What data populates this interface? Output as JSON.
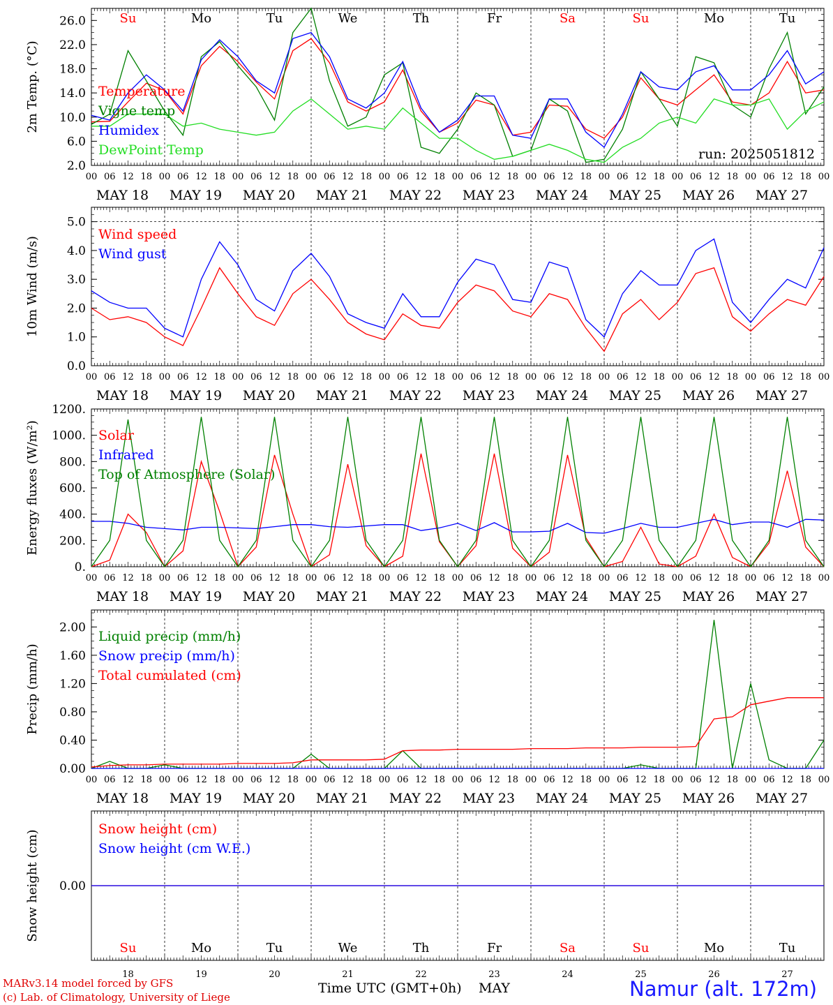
{
  "run_label": "run: 2025051812",
  "footer": {
    "credit1": "MARv3.14 model forced by GFS",
    "credit2": "(c) Lab. of Climatology, University of Liege",
    "xlabel": "Time UTC (GMT+0h)",
    "month": "MAY",
    "station": "Namur (alt. 172m)"
  },
  "day_names": [
    "Su",
    "Mo",
    "Tu",
    "We",
    "Th",
    "Fr",
    "Sa",
    "Su",
    "Mo",
    "Tu"
  ],
  "weekend_flags": [
    true,
    false,
    false,
    false,
    false,
    false,
    true,
    true,
    false,
    false
  ],
  "day_numbers": [
    "18",
    "19",
    "20",
    "21",
    "22",
    "23",
    "24",
    "25",
    "26",
    "27"
  ],
  "date_labels": [
    "MAY 18",
    "MAY 19",
    "MAY 20",
    "MAY 21",
    "MAY 22",
    "MAY 23",
    "MAY 24",
    "MAY 25",
    "MAY 26",
    "MAY 27"
  ],
  "hour_labels": [
    "00",
    "06",
    "12",
    "18"
  ],
  "colors": {
    "red": "#ff0000",
    "blue": "#0000ff",
    "green": "#008000",
    "lightgreen": "#22dd22",
    "grid": "#000000"
  },
  "chart_data": [
    {
      "type": "line",
      "ylabel": "2m Temp. (°C)",
      "ylim": [
        2,
        28
      ],
      "yticks": [
        2,
        6,
        10,
        14,
        18,
        22,
        26
      ],
      "tick_labels": [
        "2.0",
        "6.0",
        "10.0",
        "14.0",
        "18.0",
        "22.0",
        "26.0"
      ],
      "x_hours": [
        0,
        6,
        12,
        18,
        24,
        30,
        36,
        42,
        48,
        54,
        60,
        66,
        72,
        78,
        84,
        90,
        96,
        102,
        108,
        114,
        120,
        126,
        132,
        138,
        144,
        150,
        156,
        162,
        168,
        174,
        180,
        186,
        192,
        198,
        204,
        210,
        216,
        222,
        228,
        234,
        240
      ],
      "series": [
        {
          "name": "Temperature",
          "color": "#ff0000",
          "values": [
            9.2,
            9.3,
            12.5,
            15.6,
            14.4,
            10.5,
            18.5,
            21.7,
            19.2,
            15.8,
            13.0,
            21.0,
            23.0,
            19.0,
            12.5,
            11.0,
            12.5,
            17.8,
            11.0,
            7.5,
            9.0,
            12.8,
            12.0,
            7.0,
            7.5,
            12.0,
            11.8,
            8.0,
            6.5,
            10.0,
            16.5,
            13.0,
            12.0,
            14.5,
            17.0,
            12.5,
            12.0,
            14.0,
            19.2,
            14.0,
            14.5
          ]
        },
        {
          "name": "Vigne temp",
          "color": "#008000",
          "values": [
            8.8,
            10.5,
            21.0,
            16.0,
            11.0,
            7.0,
            20.0,
            22.5,
            18.5,
            15.0,
            9.5,
            24.0,
            28.0,
            16.0,
            8.5,
            10.0,
            17.0,
            19.0,
            5.0,
            4.0,
            8.0,
            14.0,
            12.0,
            3.5,
            4.5,
            13.0,
            11.0,
            2.5,
            3.0,
            8.0,
            17.5,
            13.0,
            8.5,
            20.0,
            19.0,
            12.0,
            10.0,
            18.0,
            24.0,
            10.5,
            15.0
          ]
        },
        {
          "name": "Humidex",
          "color": "#0000ff",
          "values": [
            10.3,
            9.5,
            14.0,
            17.0,
            14.5,
            11.0,
            19.5,
            22.8,
            20.0,
            16.0,
            14.0,
            23.0,
            24.0,
            20.0,
            13.0,
            11.5,
            14.0,
            19.2,
            11.5,
            7.5,
            9.5,
            13.5,
            13.5,
            7.0,
            6.5,
            13.0,
            13.0,
            7.5,
            5.0,
            10.5,
            17.5,
            15.0,
            14.5,
            17.5,
            18.5,
            14.5,
            14.5,
            17.0,
            21.0,
            15.5,
            17.5
          ]
        },
        {
          "name": "DewPoint Temp",
          "color": "#22dd22",
          "values": [
            8.5,
            8.5,
            10.5,
            10.5,
            10.5,
            8.5,
            9.0,
            8.0,
            7.5,
            7.0,
            7.5,
            11.0,
            13.0,
            10.5,
            8.0,
            8.5,
            8.0,
            11.5,
            9.0,
            6.5,
            6.5,
            4.5,
            3.0,
            3.5,
            4.5,
            5.5,
            4.5,
            3.0,
            2.5,
            5.0,
            6.5,
            9.0,
            10.0,
            9.0,
            13.0,
            12.0,
            12.0,
            13.0,
            8.0,
            11.0,
            12.5
          ]
        }
      ]
    },
    {
      "type": "line",
      "ylabel": "10m Wind (m/s)",
      "ylim": [
        0,
        5.5
      ],
      "yticks": [
        0,
        1,
        2,
        3,
        4,
        5
      ],
      "tick_labels": [
        "0.0",
        "1.0",
        "2.0",
        "3.0",
        "4.0",
        "5.0"
      ],
      "x_hours": [
        0,
        6,
        12,
        18,
        24,
        30,
        36,
        42,
        48,
        54,
        60,
        66,
        72,
        78,
        84,
        90,
        96,
        102,
        108,
        114,
        120,
        126,
        132,
        138,
        144,
        150,
        156,
        162,
        168,
        174,
        180,
        186,
        192,
        198,
        204,
        210,
        216,
        222,
        228,
        234,
        240
      ],
      "series": [
        {
          "name": "Wind speed",
          "color": "#ff0000",
          "values": [
            2.0,
            1.6,
            1.7,
            1.5,
            1.0,
            0.7,
            2.0,
            3.4,
            2.5,
            1.7,
            1.4,
            2.5,
            3.0,
            2.3,
            1.5,
            1.1,
            0.9,
            1.8,
            1.4,
            1.3,
            2.2,
            2.8,
            2.6,
            1.9,
            1.7,
            2.5,
            2.3,
            1.3,
            0.5,
            1.8,
            2.3,
            1.6,
            2.2,
            3.2,
            3.4,
            1.7,
            1.2,
            1.8,
            2.3,
            2.1,
            3.1
          ]
        },
        {
          "name": "Wind gust",
          "color": "#0000ff",
          "values": [
            2.6,
            2.2,
            2.0,
            2.0,
            1.3,
            1.0,
            3.0,
            4.3,
            3.5,
            2.3,
            1.9,
            3.3,
            3.9,
            3.1,
            1.8,
            1.5,
            1.3,
            2.5,
            1.7,
            1.7,
            2.9,
            3.7,
            3.5,
            2.3,
            2.2,
            3.6,
            3.4,
            1.6,
            1.0,
            2.5,
            3.3,
            2.8,
            2.8,
            4.0,
            4.4,
            2.2,
            1.5,
            2.3,
            3.0,
            2.7,
            4.1
          ]
        }
      ]
    },
    {
      "type": "line",
      "ylabel": "Energy fluxes (W/m²)",
      "ylim": [
        0,
        1200
      ],
      "yticks": [
        0,
        200,
        400,
        600,
        800,
        1000,
        1200
      ],
      "tick_labels": [
        "0.",
        "200.",
        "400.",
        "600.",
        "800.",
        "1000.",
        "1200."
      ],
      "x_hours": [
        0,
        6,
        12,
        18,
        24,
        30,
        36,
        42,
        48,
        54,
        60,
        66,
        72,
        78,
        84,
        90,
        96,
        102,
        108,
        114,
        120,
        126,
        132,
        138,
        144,
        150,
        156,
        162,
        168,
        174,
        180,
        186,
        192,
        198,
        204,
        210,
        216,
        222,
        228,
        234,
        240
      ],
      "series": [
        {
          "name": "Solar",
          "color": "#ff0000",
          "values": [
            0,
            50,
            400,
            260,
            0,
            120,
            800,
            420,
            0,
            150,
            850,
            400,
            0,
            90,
            780,
            160,
            0,
            80,
            860,
            190,
            0,
            160,
            860,
            140,
            0,
            110,
            850,
            220,
            0,
            40,
            300,
            20,
            0,
            80,
            400,
            70,
            0,
            180,
            730,
            150,
            0
          ]
        },
        {
          "name": "Infrared",
          "color": "#0000ff",
          "values": [
            345,
            345,
            330,
            300,
            290,
            280,
            300,
            300,
            295,
            290,
            305,
            320,
            320,
            305,
            300,
            310,
            320,
            320,
            275,
            295,
            330,
            275,
            335,
            265,
            265,
            270,
            330,
            260,
            255,
            290,
            330,
            300,
            300,
            330,
            360,
            320,
            340,
            340,
            300,
            360,
            355
          ]
        },
        {
          "name": "Top of Atmosphere (Solar)",
          "color": "#008000",
          "values": [
            0,
            200,
            1120,
            200,
            0,
            200,
            1140,
            200,
            0,
            200,
            1140,
            200,
            0,
            200,
            1140,
            200,
            0,
            200,
            1140,
            200,
            0,
            200,
            1140,
            200,
            0,
            200,
            1140,
            200,
            0,
            200,
            1140,
            200,
            0,
            200,
            1140,
            200,
            0,
            200,
            1140,
            200,
            0
          ]
        }
      ]
    },
    {
      "type": "line",
      "ylabel": "Precip (mm/h)",
      "ylim": [
        0,
        2.24
      ],
      "yticks": [
        0,
        0.4,
        0.8,
        1.2,
        1.6,
        2.0
      ],
      "tick_labels": [
        "0.00",
        "0.40",
        "0.80",
        "1.20",
        "1.60",
        "2.00"
      ],
      "x_hours": [
        0,
        6,
        12,
        18,
        24,
        30,
        36,
        42,
        48,
        54,
        60,
        66,
        72,
        78,
        84,
        90,
        96,
        102,
        108,
        114,
        120,
        126,
        132,
        138,
        144,
        150,
        156,
        162,
        168,
        174,
        180,
        186,
        192,
        198,
        204,
        210,
        216,
        222,
        228,
        234,
        240
      ],
      "series": [
        {
          "name": "Liquid precip (mm/h)",
          "color": "#008000",
          "values": [
            0,
            0.1,
            0,
            0,
            0.05,
            0,
            0,
            0,
            0,
            0,
            0,
            0,
            0.2,
            0,
            0,
            0,
            0,
            0.25,
            0,
            0,
            0,
            0,
            0,
            0,
            0,
            0,
            0,
            0,
            0,
            0,
            0.05,
            0,
            0,
            0,
            2.1,
            0,
            1.2,
            0.12,
            0,
            0,
            0.4
          ]
        },
        {
          "name": "Snow precip (mm/h)",
          "color": "#0000ff",
          "values": [
            0,
            0,
            0,
            0,
            0,
            0,
            0,
            0,
            0,
            0,
            0,
            0,
            0,
            0,
            0,
            0,
            0,
            0,
            0,
            0,
            0,
            0,
            0,
            0,
            0,
            0,
            0,
            0,
            0,
            0,
            0,
            0,
            0,
            0,
            0,
            0,
            0,
            0,
            0,
            0,
            0
          ]
        },
        {
          "name": "Total cumulated (cm)",
          "color": "#ff0000",
          "values": [
            0.02,
            0.04,
            0.05,
            0.05,
            0.06,
            0.06,
            0.06,
            0.06,
            0.07,
            0.07,
            0.07,
            0.08,
            0.12,
            0.12,
            0.12,
            0.12,
            0.13,
            0.25,
            0.26,
            0.26,
            0.27,
            0.27,
            0.27,
            0.27,
            0.28,
            0.28,
            0.28,
            0.29,
            0.29,
            0.29,
            0.3,
            0.3,
            0.3,
            0.31,
            0.7,
            0.73,
            0.9,
            0.95,
            1.0,
            1.0,
            1.0
          ]
        }
      ]
    },
    {
      "type": "line",
      "ylabel": "Snow height (cm)",
      "ylim": [
        -1,
        1
      ],
      "yticks": [
        0
      ],
      "tick_labels": [
        "0.00"
      ],
      "x_hours": [
        0,
        240
      ],
      "series": [
        {
          "name": "Snow height (cm)",
          "color": "#ff0000",
          "values": [
            0,
            0
          ]
        },
        {
          "name": "Snow height (cm W.E.)",
          "color": "#0000ff",
          "values": [
            0,
            0
          ]
        }
      ]
    }
  ]
}
